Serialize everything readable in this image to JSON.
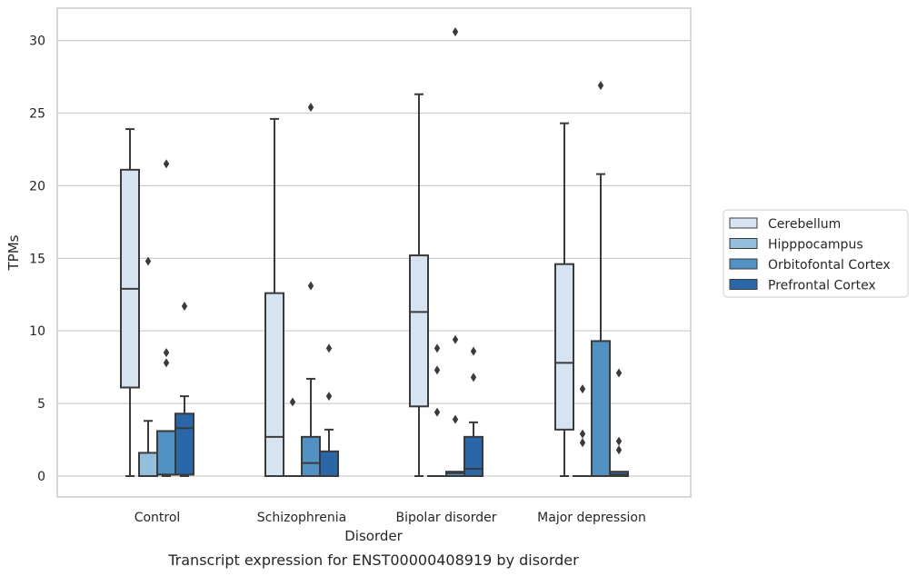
{
  "chart_data": {
    "type": "boxplot",
    "title": "",
    "caption": "Transcript expression for ENST00000408919 by disorder",
    "xlabel": "Disorder",
    "ylabel": "TPMs",
    "ylim": [
      -1.5,
      32.2
    ],
    "yticks": [
      0,
      5,
      10,
      15,
      20,
      25,
      30
    ],
    "grid": "horizontal",
    "legend_position": "right",
    "categories": [
      "Control",
      "Schizophrenia",
      "Bipolar disorder",
      "Major depression"
    ],
    "series": [
      {
        "name": "Cerebellum",
        "color": "#d6e4f2",
        "boxes": [
          {
            "whislo": 0,
            "q1": 6.1,
            "med": 12.9,
            "q3": 21.1,
            "whishi": 23.9,
            "fliers": []
          },
          {
            "whislo": 0,
            "q1": 0,
            "med": 2.7,
            "q3": 12.6,
            "whishi": 24.6,
            "fliers": []
          },
          {
            "whislo": 0,
            "q1": 4.8,
            "med": 11.3,
            "q3": 15.2,
            "whishi": 26.3,
            "fliers": []
          },
          {
            "whislo": 0,
            "q1": 3.2,
            "med": 7.8,
            "q3": 14.6,
            "whishi": 24.3,
            "fliers": []
          }
        ]
      },
      {
        "name": "Hipppocampus",
        "color": "#94bfdc",
        "boxes": [
          {
            "whislo": 0,
            "q1": 0,
            "med": 0,
            "q3": 1.6,
            "whishi": 3.8,
            "fliers": [
              14.8
            ]
          },
          {
            "whislo": 0,
            "q1": 0,
            "med": 0,
            "q3": 0,
            "whishi": 0,
            "fliers": [
              5.1
            ]
          },
          {
            "whislo": 0,
            "q1": 0,
            "med": 0,
            "q3": 0,
            "whishi": 0,
            "fliers": [
              4.4,
              7.3,
              8.8
            ]
          },
          {
            "whislo": 0,
            "q1": 0,
            "med": 0,
            "q3": 0,
            "whishi": 0,
            "fliers": [
              2.3,
              2.9,
              6.0
            ]
          }
        ]
      },
      {
        "name": "Orbitofontal Cortex",
        "color": "#5092c2",
        "boxes": [
          {
            "whislo": 0,
            "q1": 0.1,
            "med": 0.1,
            "q3": 3.1,
            "whishi": 3.1,
            "fliers": [
              7.8,
              8.5,
              21.5
            ]
          },
          {
            "whislo": 0,
            "q1": 0,
            "med": 0.9,
            "q3": 2.7,
            "whishi": 6.7,
            "fliers": [
              13.1,
              25.4
            ]
          },
          {
            "whislo": 0,
            "q1": 0,
            "med": 0.2,
            "q3": 0.3,
            "whishi": 0.3,
            "fliers": [
              3.9,
              9.4,
              30.6
            ]
          },
          {
            "whislo": 0,
            "q1": 0,
            "med": 0,
            "q3": 9.3,
            "whishi": 20.8,
            "fliers": [
              26.9
            ]
          }
        ]
      },
      {
        "name": "Prefrontal Cortex",
        "color": "#2a67a8",
        "boxes": [
          {
            "whislo": 0,
            "q1": 0.1,
            "med": 3.3,
            "q3": 4.3,
            "whishi": 5.5,
            "fliers": [
              11.7
            ]
          },
          {
            "whislo": 0,
            "q1": 0,
            "med": 0,
            "q3": 1.7,
            "whishi": 3.2,
            "fliers": [
              5.5,
              8.8
            ]
          },
          {
            "whislo": 0,
            "q1": 0,
            "med": 0.5,
            "q3": 2.7,
            "whishi": 3.7,
            "fliers": [
              6.8,
              8.6
            ]
          },
          {
            "whislo": 0,
            "q1": 0,
            "med": 0.1,
            "q3": 0.3,
            "whishi": 0.3,
            "fliers": [
              1.8,
              2.4,
              7.1
            ]
          }
        ]
      }
    ]
  }
}
